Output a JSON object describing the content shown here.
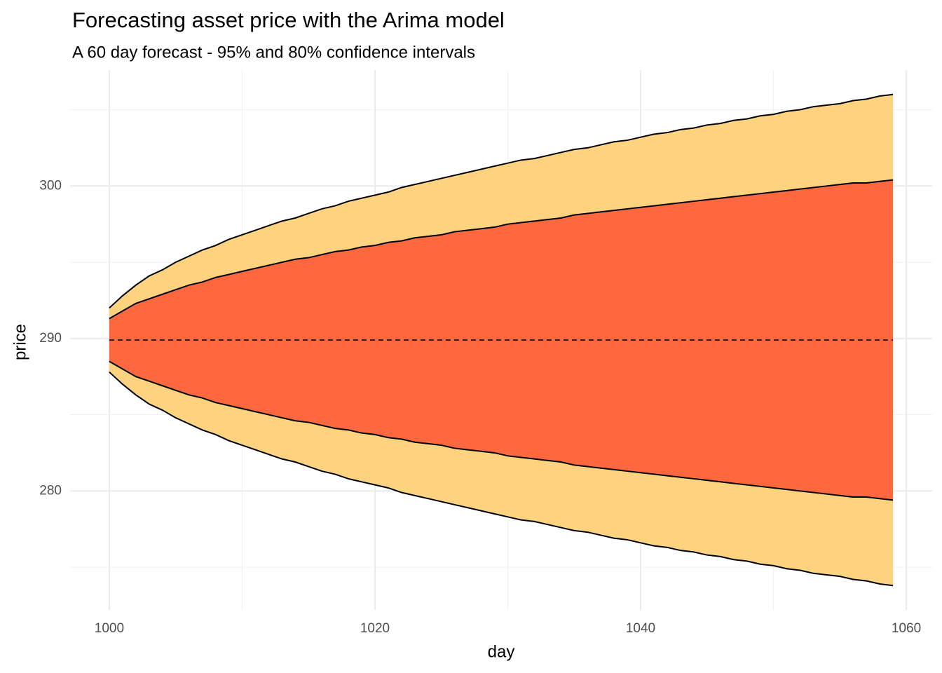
{
  "chart_data": {
    "type": "ribbon",
    "title": "Forecasting asset price with the Arima model",
    "subtitle": "A 60 day forecast - 95% and 80% confidence intervals",
    "x_label": "day",
    "y_label": "price",
    "xlim": [
      997.05,
      1061.95
    ],
    "ylim": [
      272.2,
      307.6
    ],
    "xticks": [
      1000,
      1020,
      1040,
      1060
    ],
    "yticks": [
      280,
      290,
      300
    ],
    "x_minor_grid": [
      1010,
      1030,
      1050
    ],
    "y_minor_grid": [
      275,
      285,
      295,
      305
    ],
    "grid": true,
    "x": [
      1000,
      1001,
      1002,
      1003,
      1004,
      1005,
      1006,
      1007,
      1008,
      1009,
      1010,
      1011,
      1012,
      1013,
      1014,
      1015,
      1016,
      1017,
      1018,
      1019,
      1020,
      1021,
      1022,
      1023,
      1024,
      1025,
      1026,
      1027,
      1028,
      1029,
      1030,
      1031,
      1032,
      1033,
      1034,
      1035,
      1036,
      1037,
      1038,
      1039,
      1040,
      1041,
      1042,
      1043,
      1044,
      1045,
      1046,
      1047,
      1048,
      1049,
      1050,
      1051,
      1052,
      1053,
      1054,
      1055,
      1056,
      1057,
      1058,
      1059
    ],
    "series": [
      {
        "color": "#fed380",
        "upper": [
          292.0,
          292.8,
          293.5,
          294.1,
          294.5,
          295.0,
          295.4,
          295.8,
          296.1,
          296.5,
          296.8,
          297.1,
          297.4,
          297.7,
          297.9,
          298.2,
          298.5,
          298.7,
          299.0,
          299.2,
          299.4,
          299.6,
          299.9,
          300.1,
          300.3,
          300.5,
          300.7,
          300.9,
          301.1,
          301.3,
          301.5,
          301.7,
          301.8,
          302.0,
          302.2,
          302.4,
          302.5,
          302.7,
          302.9,
          303.0,
          303.2,
          303.4,
          303.5,
          303.7,
          303.8,
          304.0,
          304.1,
          304.3,
          304.4,
          304.6,
          304.7,
          304.9,
          305.0,
          305.2,
          305.3,
          305.4,
          305.6,
          305.7,
          305.9,
          306.0
        ],
        "lower": [
          287.8,
          287.0,
          286.3,
          285.7,
          285.3,
          284.8,
          284.4,
          284.0,
          283.7,
          283.3,
          283.0,
          282.7,
          282.4,
          282.1,
          281.9,
          281.6,
          281.3,
          281.1,
          280.8,
          280.6,
          280.4,
          280.2,
          279.9,
          279.7,
          279.5,
          279.3,
          279.1,
          278.9,
          278.7,
          278.5,
          278.3,
          278.1,
          278.0,
          277.8,
          277.6,
          277.4,
          277.3,
          277.1,
          276.9,
          276.8,
          276.6,
          276.4,
          276.3,
          276.1,
          276.0,
          275.8,
          275.7,
          275.5,
          275.4,
          275.2,
          275.1,
          274.9,
          274.8,
          274.6,
          274.5,
          274.4,
          274.2,
          274.1,
          273.9,
          273.8
        ]
      },
      {
        "color": "#ff683f",
        "upper": [
          291.3,
          291.8,
          292.3,
          292.6,
          292.9,
          293.2,
          293.5,
          293.7,
          294.0,
          294.2,
          294.4,
          294.6,
          294.8,
          295.0,
          295.2,
          295.3,
          295.5,
          295.7,
          295.8,
          296.0,
          296.1,
          296.3,
          296.4,
          296.6,
          296.7,
          296.8,
          297.0,
          297.1,
          297.2,
          297.3,
          297.5,
          297.6,
          297.7,
          297.8,
          297.9,
          298.1,
          298.2,
          298.3,
          298.4,
          298.5,
          298.6,
          298.7,
          298.8,
          298.9,
          299.0,
          299.1,
          299.2,
          299.3,
          299.4,
          299.5,
          299.6,
          299.7,
          299.8,
          299.9,
          300.0,
          300.1,
          300.2,
          300.2,
          300.3,
          300.4
        ],
        "lower": [
          288.5,
          288.0,
          287.5,
          287.2,
          286.9,
          286.6,
          286.3,
          286.1,
          285.8,
          285.6,
          285.4,
          285.2,
          285.0,
          284.8,
          284.6,
          284.5,
          284.3,
          284.1,
          284.0,
          283.8,
          283.7,
          283.5,
          283.4,
          283.2,
          283.1,
          283.0,
          282.8,
          282.7,
          282.6,
          282.5,
          282.3,
          282.2,
          282.1,
          282.0,
          281.9,
          281.7,
          281.6,
          281.5,
          281.4,
          281.3,
          281.2,
          281.1,
          281.0,
          280.9,
          280.8,
          280.7,
          280.6,
          280.5,
          280.4,
          280.3,
          280.2,
          280.1,
          280.0,
          279.9,
          279.8,
          279.7,
          279.6,
          279.6,
          279.5,
          279.4
        ]
      },
      {
        "color": "#000000",
        "dashed": true,
        "values": [
          289.9,
          289.9,
          289.9,
          289.9,
          289.9,
          289.9,
          289.9,
          289.9,
          289.9,
          289.9,
          289.9,
          289.9,
          289.9,
          289.9,
          289.9,
          289.9,
          289.9,
          289.9,
          289.9,
          289.9,
          289.9,
          289.9,
          289.9,
          289.9,
          289.9,
          289.9,
          289.9,
          289.9,
          289.9,
          289.9,
          289.9,
          289.9,
          289.9,
          289.9,
          289.9,
          289.9,
          289.9,
          289.9,
          289.9,
          289.9,
          289.9,
          289.9,
          289.9,
          289.9,
          289.9,
          289.9,
          289.9,
          289.9,
          289.9,
          289.9,
          289.9,
          289.9,
          289.9,
          289.9,
          289.9,
          289.9,
          289.9,
          289.9,
          289.9,
          289.9
        ]
      }
    ]
  }
}
